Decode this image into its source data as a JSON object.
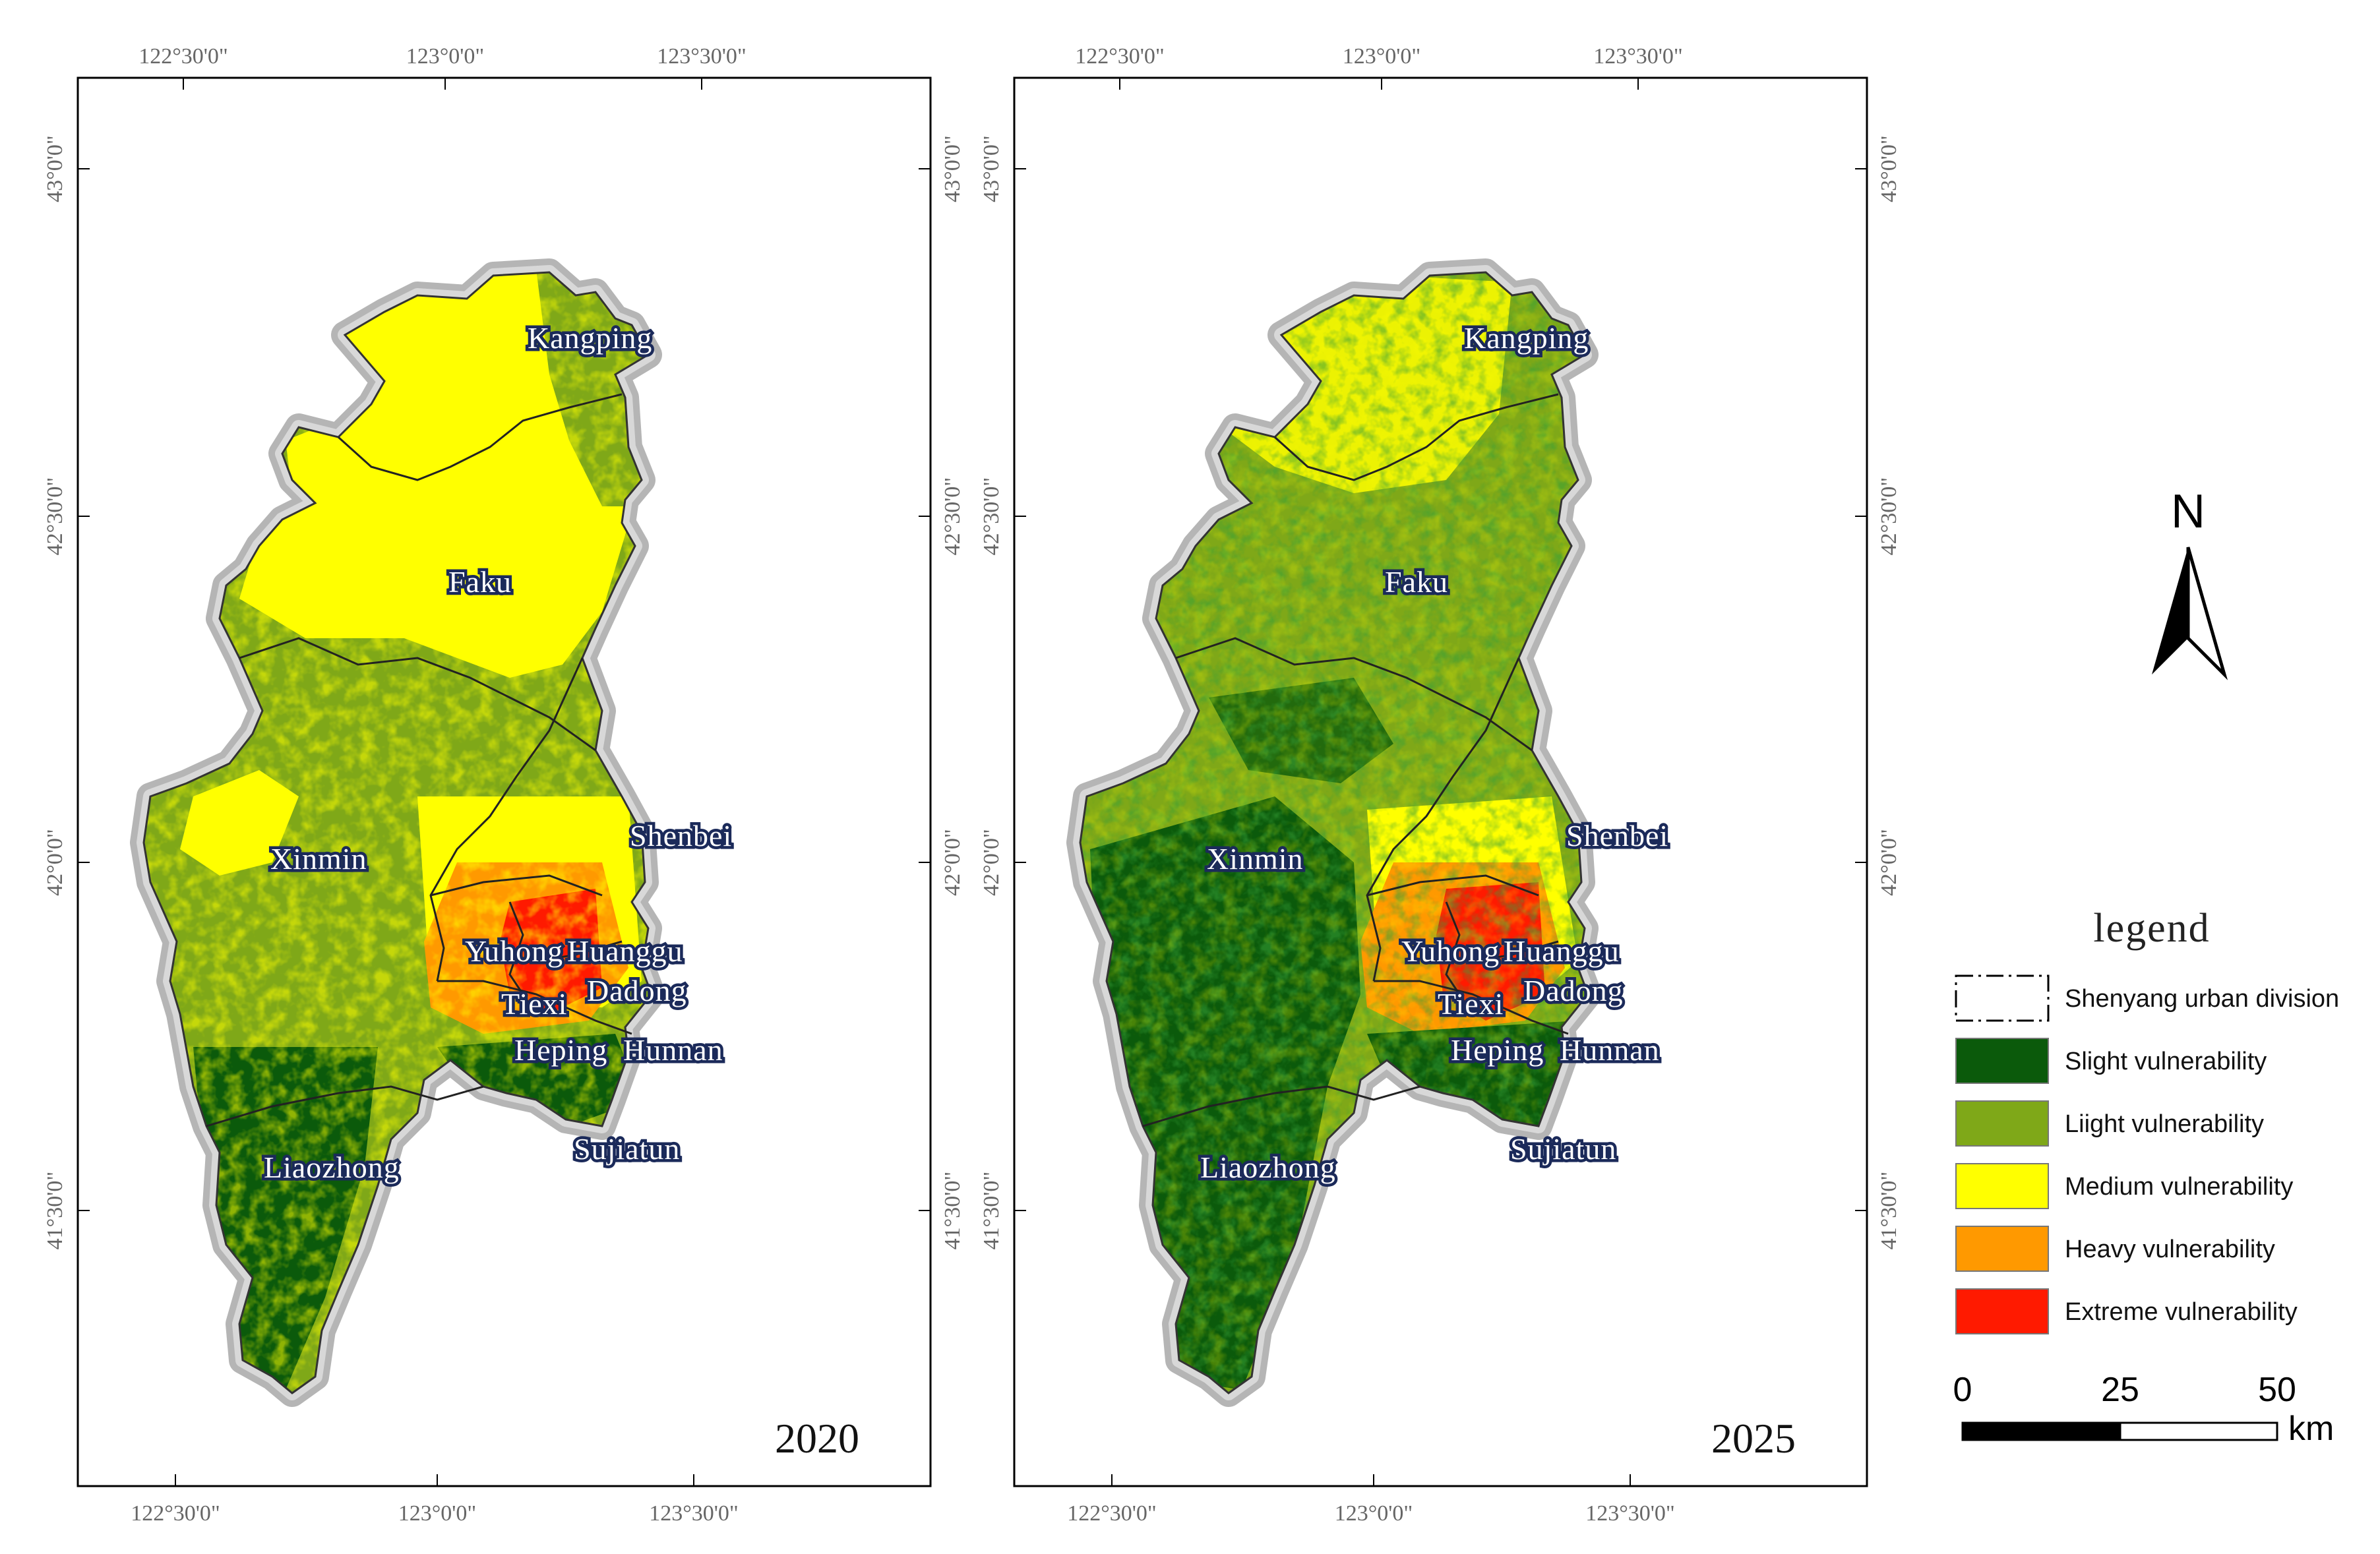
{
  "colors": {
    "slight": "#0b5a0b",
    "light": "#7fa818",
    "medium": "#ffff00",
    "heavy": "#ff9900",
    "extreme": "#ff1a00",
    "halo": "#a8a8a8",
    "boundary": "#222222"
  },
  "maps": [
    {
      "year": "2020",
      "top_labels": [
        "122°30'0\"",
        "123°0'0\"",
        "123°30'0\""
      ],
      "bottom_labels": [
        "122°30'0\"",
        "123°0'0\"",
        "123°30'0\""
      ],
      "left_labels": [
        "43°0'0\"",
        "42°30'0\"",
        "42°0'0\"",
        "41°30'0\""
      ],
      "right_labels": [
        "43°0'0\"",
        "42°30'0\"",
        "42°0'0\"",
        "41°30'0\""
      ],
      "places": [
        "Kangping",
        "Faku",
        "Shenbei",
        "Xinmin",
        "Yuhong",
        "Huanggu",
        "Tiexi",
        "Dadong",
        "Heping",
        "Hunnan",
        "Liaozhong",
        "Sujiatun"
      ]
    },
    {
      "year": "2025",
      "top_labels": [
        "122°30'0\"",
        "123°0'0\"",
        "123°30'0\""
      ],
      "bottom_labels": [
        "122°30'0\"",
        "123°0'0\"",
        "123°30'0\""
      ],
      "left_labels": [
        "43°0'0\"",
        "42°30'0\"",
        "42°0'0\"",
        "41°30'0\""
      ],
      "right_labels": [
        "43°0'0\"",
        "42°30'0\"",
        "42°0'0\"",
        "41°30'0\""
      ],
      "places": [
        "Kangping",
        "Faku",
        "Shenbei",
        "Xinmin",
        "Yuhong",
        "Huanggu",
        "Tiexi",
        "Dadong",
        "Heping",
        "Hunnan",
        "Liaozhong",
        "Sujiatun"
      ]
    }
  ],
  "north_arrow": {
    "label": "N"
  },
  "legend": {
    "title": "legend",
    "items": [
      {
        "label": "Shenyang urban division",
        "kind": "boundary"
      },
      {
        "label": "Slight vulnerability",
        "kind": "slight"
      },
      {
        "label": "Liight vulnerability",
        "kind": "light"
      },
      {
        "label": "Medium vulnerability",
        "kind": "medium"
      },
      {
        "label": "Heavy vulnerability",
        "kind": "heavy"
      },
      {
        "label": "Extreme vulnerability",
        "kind": "extreme"
      }
    ]
  },
  "scale_bar": {
    "ticks": [
      "0",
      "25",
      "50"
    ],
    "unit": "km"
  }
}
